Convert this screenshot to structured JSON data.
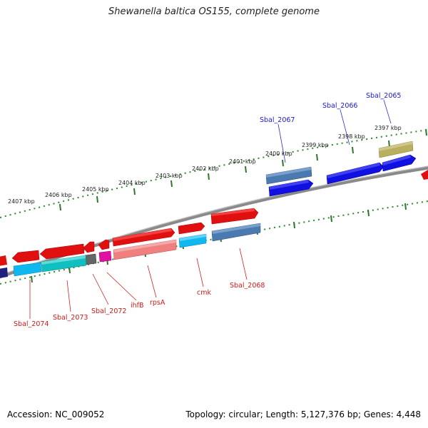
{
  "title": "Shewanella baltica OS155, complete genome",
  "footer": {
    "accession": "Accession: NC_009052",
    "summary": "Topology: circular; Length: 5,127,376 bp; Genes: 4,448"
  },
  "colors": {
    "forward_label": "#1a1acc",
    "reverse_label": "#cc1a1a",
    "backbone": "#808080",
    "tick": "#2a7a2a"
  },
  "ruler_outer": {
    "labels": [
      "2400 kbp",
      "2399 kbp",
      "2398 kbp",
      "2397 kbp"
    ]
  },
  "ruler_inner": {
    "labels": [
      "2407 kbp",
      "2406 kbp",
      "2405 kbp",
      "2404 kbp",
      "2403 kbp",
      "2402 kbp",
      "2401 kbp"
    ]
  },
  "gene_labels_forward": [
    "Sbal_2067",
    "Sbal_2066",
    "Sbal_2065"
  ],
  "gene_labels_reverse": [
    "Sbal_2074",
    "Sbal_2073",
    "Sbal_2072",
    "ihfB",
    "rpsA",
    "cmk",
    "Sbal_2068"
  ]
}
